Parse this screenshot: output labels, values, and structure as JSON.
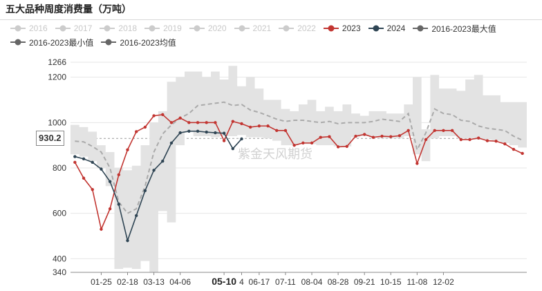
{
  "chart_data": {
    "type": "line",
    "title": "五大品种周度消费量（万吨）",
    "xlabel": "",
    "ylabel": "",
    "ylim": [
      340,
      1266
    ],
    "y_ticks": [
      340,
      400,
      600,
      800,
      1000,
      1200,
      1266
    ],
    "x_ticks": [
      "01-25",
      "02-18",
      "03-13",
      "04-06",
      "05-10",
      "4",
      "06-17",
      "07-11",
      "08-04",
      "08-28",
      "09-21",
      "10-15",
      "11-08",
      "12-02"
    ],
    "x_tick_weeks": [
      3,
      6,
      9,
      12,
      17,
      19,
      21,
      24,
      27,
      30,
      33,
      36,
      39,
      42
    ],
    "highlighted_tick": "05-10",
    "y_crosshair_value": "930.2",
    "watermark": "紫金天风期货",
    "grid": true,
    "legend_position": "top",
    "legend": [
      {
        "name": "2016",
        "active": false
      },
      {
        "name": "2017",
        "active": false
      },
      {
        "name": "2018",
        "active": false
      },
      {
        "name": "2019",
        "active": false
      },
      {
        "name": "2020",
        "active": false
      },
      {
        "name": "2021",
        "active": false
      },
      {
        "name": "2022",
        "active": false
      },
      {
        "name": "2023",
        "active": true,
        "color": "#c23531"
      },
      {
        "name": "2024",
        "active": true,
        "color": "#2f4554"
      },
      {
        "name": "2016-2023最大值",
        "active": true,
        "color": "#666666"
      },
      {
        "name": "2016-2023最小值",
        "active": true,
        "color": "#666666"
      },
      {
        "name": "2016-2023均值",
        "active": true,
        "color": "#666666"
      }
    ],
    "series": [
      {
        "name": "2023",
        "color": "#c23531",
        "values": [
          825,
          755,
          705,
          530,
          620,
          770,
          880,
          960,
          980,
          1030,
          1035,
          1000,
          1020,
          1000,
          1000,
          1000,
          1000,
          920,
          1005,
          995,
          980,
          985,
          985,
          965,
          965,
          900,
          910,
          910,
          935,
          938,
          893,
          895,
          940,
          948,
          935,
          940,
          938,
          942,
          965,
          820,
          925,
          965,
          965,
          965,
          925,
          925,
          932,
          920,
          918,
          906,
          882,
          864
        ]
      },
      {
        "name": "2024",
        "color": "#2f4554",
        "values": [
          850,
          840,
          825,
          795,
          740,
          640,
          480,
          590,
          700,
          790,
          830,
          910,
          955,
          962,
          962,
          958,
          955,
          953,
          885,
          928
        ]
      },
      {
        "name": "2016-2023最大值",
        "color": "#e3e3e3",
        "values": [
          990,
          980,
          960,
          900,
          870,
          800,
          790,
          810,
          900,
          1000,
          1050,
          1180,
          1200,
          1225,
          1225,
          1200,
          1225,
          1190,
          1250,
          1160,
          1200,
          1150,
          1100,
          1100,
          1060,
          1050,
          1080,
          1100,
          1050,
          1070,
          1050,
          1080,
          1040,
          1030,
          1050,
          1050,
          1040,
          1040,
          1080,
          1200,
          970,
          1210,
          1150,
          1150,
          1140,
          1190,
          1210,
          1120,
          1120,
          1090,
          1090,
          1090
        ]
      },
      {
        "name": "2016-2023最小值",
        "color": "#e3e3e3",
        "values": [
          860,
          850,
          830,
          800,
          720,
          355,
          360,
          355,
          390,
          340,
          610,
          560,
          900,
          960,
          940,
          940,
          935,
          940,
          940,
          945,
          935,
          935,
          930,
          920,
          900,
          900,
          905,
          905,
          900,
          900,
          895,
          895,
          935,
          940,
          935,
          930,
          930,
          930,
          940,
          860,
          830,
          930,
          940,
          940,
          930,
          930,
          925,
          925,
          920,
          910,
          900,
          890
        ]
      },
      {
        "name": "2016-2023均值",
        "color": "#aaaaaa",
        "values": [
          918,
          915,
          895,
          870,
          800,
          650,
          600,
          620,
          720,
          870,
          950,
          990,
          1020,
          1040,
          1075,
          1080,
          1085,
          1090,
          1075,
          1080,
          1055,
          1045,
          1030,
          1015,
          1005,
          1010,
          1010,
          1005,
          1000,
          1005,
          995,
          1000,
          1000,
          1000,
          1005,
          1015,
          1010,
          1005,
          1040,
          880,
          955,
          1060,
          1040,
          1035,
          1010,
          1005,
          985,
          975,
          970,
          965,
          940,
          922
        ]
      }
    ]
  }
}
